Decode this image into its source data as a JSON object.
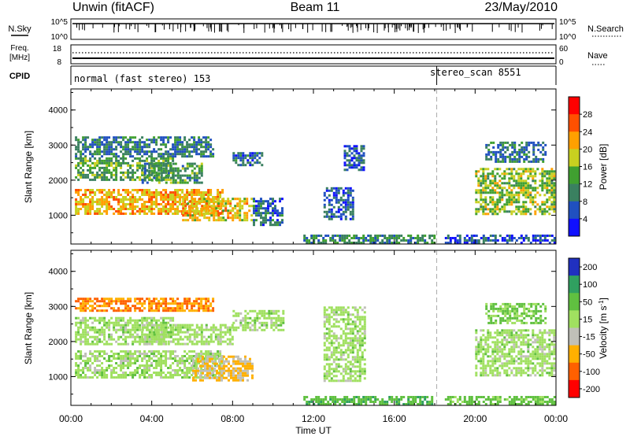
{
  "header": {
    "title": "Unwin (fitACF)",
    "beam": "Beam 11",
    "date": "23/May/2010"
  },
  "noise_panel": {
    "left_label": "N.Sky",
    "right_label": "N.Search",
    "left_ticks": [
      "10^5",
      "10^0"
    ],
    "right_ticks": [
      "10^5",
      "10^0"
    ]
  },
  "freq_panel": {
    "left_label_1": "Freq.",
    "left_label_2": "[MHz]",
    "left_ticks": [
      "18",
      "8"
    ],
    "right_label": "Nave",
    "right_ticks": [
      "60",
      "0"
    ]
  },
  "cpid_panel": {
    "label": "CPID",
    "segments": [
      "normal (fast stereo) 153",
      "stereo_scan 8551"
    ],
    "switch_time_hours": 18.1
  },
  "x_axis": {
    "label": "Time UT",
    "ticks": [
      "00:00",
      "04:00",
      "08:00",
      "12:00",
      "16:00",
      "20:00",
      "00:00"
    ]
  },
  "chart_data": [
    {
      "type": "heatmap",
      "title": "",
      "xlabel": "Time UT",
      "ylabel": "Slant Range [km]",
      "x_range_hours": [
        0,
        24
      ],
      "ylim": [
        180,
        4600
      ],
      "yticks": [
        "1000",
        "2000",
        "3000",
        "4000"
      ],
      "colorbar": {
        "label": "Power [dB]",
        "ticks": [
          "4",
          "8",
          "12",
          "16",
          "20",
          "24",
          "28"
        ],
        "range": [
          0,
          32
        ],
        "colors": [
          "#1010ff",
          "#2050c0",
          "#3a8060",
          "#40a030",
          "#c8d020",
          "#ffa000",
          "#ff5000",
          "#ff0000"
        ]
      },
      "echo_regions": [
        {
          "t": [
            0.2,
            7.0
          ],
          "r": [
            2700,
            3250
          ],
          "level": 9
        },
        {
          "t": [
            0.2,
            5.0
          ],
          "r": [
            2000,
            2650
          ],
          "level": 13
        },
        {
          "t": [
            0.2,
            7.5
          ],
          "r": [
            1050,
            1750
          ],
          "level": 21
        },
        {
          "t": [
            3.5,
            6.5
          ],
          "r": [
            1900,
            2500
          ],
          "level": 12
        },
        {
          "t": [
            5.5,
            9.0
          ],
          "r": [
            850,
            1500
          ],
          "level": 20
        },
        {
          "t": [
            9.0,
            10.5
          ],
          "r": [
            700,
            1500
          ],
          "level": 8
        },
        {
          "t": [
            8.0,
            9.5
          ],
          "r": [
            2400,
            2800
          ],
          "level": 8
        },
        {
          "t": [
            12.5,
            14.0
          ],
          "r": [
            900,
            1800
          ],
          "level": 7
        },
        {
          "t": [
            13.5,
            14.5
          ],
          "r": [
            2300,
            3000
          ],
          "level": 7
        },
        {
          "t": [
            11.5,
            18.0
          ],
          "r": [
            200,
            450
          ],
          "level": 11
        },
        {
          "t": [
            20.0,
            23.9
          ],
          "r": [
            1050,
            2350
          ],
          "level": 16
        },
        {
          "t": [
            20.5,
            23.5
          ],
          "r": [
            2500,
            3100
          ],
          "level": 9
        },
        {
          "t": [
            18.5,
            23.9
          ],
          "r": [
            200,
            450
          ],
          "level": 6
        }
      ]
    },
    {
      "type": "heatmap",
      "title": "",
      "xlabel": "Time UT",
      "ylabel": "Slant Range [km]",
      "x_range_hours": [
        0,
        24
      ],
      "ylim": [
        180,
        4600
      ],
      "yticks": [
        "1000",
        "2000",
        "3000",
        "4000"
      ],
      "colorbar": {
        "label": "Velocity [m s^-1]",
        "ticks": [
          "200",
          "100",
          "50",
          "15",
          "-15",
          "-50",
          "-100",
          "-200"
        ],
        "colors": [
          "#2030c0",
          "#30a060",
          "#60c040",
          "#a0e060",
          "#c0c0b8",
          "#ffb000",
          "#ff6000",
          "#ff0000"
        ]
      },
      "echo_regions": [
        {
          "t": [
            0.2,
            7.0
          ],
          "r": [
            2900,
            3250
          ],
          "level": -100
        },
        {
          "t": [
            0.2,
            5.0
          ],
          "r": [
            1900,
            2700
          ],
          "level": 0
        },
        {
          "t": [
            0.2,
            7.5
          ],
          "r": [
            1000,
            1750
          ],
          "level": 0
        },
        {
          "t": [
            3.5,
            8.0
          ],
          "r": [
            1900,
            2500
          ],
          "level": 0
        },
        {
          "t": [
            6.0,
            9.0
          ],
          "r": [
            900,
            1600
          ],
          "level": -50
        },
        {
          "t": [
            8.0,
            10.5
          ],
          "r": [
            2300,
            2900
          ],
          "level": 0
        },
        {
          "t": [
            12.5,
            14.5
          ],
          "r": [
            900,
            3000
          ],
          "level": 0
        },
        {
          "t": [
            11.5,
            18.0
          ],
          "r": [
            200,
            450
          ],
          "level": 40
        },
        {
          "t": [
            20.0,
            23.9
          ],
          "r": [
            1050,
            2350
          ],
          "level": 0
        },
        {
          "t": [
            20.5,
            23.5
          ],
          "r": [
            2500,
            3100
          ],
          "level": 20
        },
        {
          "t": [
            18.5,
            23.9
          ],
          "r": [
            200,
            450
          ],
          "level": 30
        }
      ]
    }
  ]
}
